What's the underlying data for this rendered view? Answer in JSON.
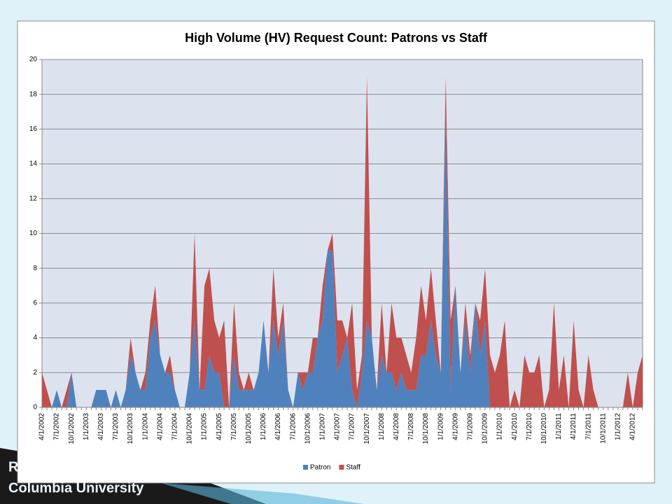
{
  "chart_data": {
    "type": "stacked-area",
    "title": "High Volume (HV) Request Count: Patrons vs Staff",
    "categories": [
      "4/1/2002",
      null,
      null,
      "7/1/2002",
      null,
      null,
      "10/1/2002",
      null,
      null,
      "1/1/2003",
      null,
      null,
      "4/1/2003",
      null,
      null,
      "7/1/2003",
      null,
      null,
      "10/1/2003",
      null,
      null,
      "1/1/2004",
      null,
      null,
      "4/1/2004",
      null,
      null,
      "7/1/2004",
      null,
      null,
      "10/1/2004",
      null,
      null,
      "1/1/2005",
      null,
      null,
      "4/1/2005",
      null,
      null,
      "7/1/2005",
      null,
      null,
      "10/1/2005",
      null,
      null,
      "1/1/2006",
      null,
      null,
      "4/1/2006",
      null,
      null,
      "7/1/2006",
      null,
      null,
      "10/1/2006",
      null,
      null,
      "1/1/2007",
      null,
      null,
      "4/1/2007",
      null,
      null,
      "7/1/2007",
      null,
      null,
      "10/1/2007",
      null,
      null,
      "1/1/2008",
      null,
      null,
      "4/1/2008",
      null,
      null,
      "7/1/2008",
      null,
      null,
      "10/1/2008",
      null,
      null,
      "1/1/2009",
      null,
      null,
      "4/1/2009",
      null,
      null,
      "7/1/2009",
      null,
      null,
      "10/1/2009",
      null,
      null,
      "1/1/2010",
      null,
      null,
      "4/1/2010",
      null,
      null,
      "7/1/2010",
      null,
      null,
      "10/1/2010",
      null,
      null,
      "1/1/2011",
      null,
      null,
      "4/1/2011",
      null,
      null,
      "7/1/2011",
      null,
      null,
      "10/1/2011",
      null,
      null,
      "1/1/2012",
      null,
      null,
      "4/1/2012",
      null,
      null
    ],
    "series": [
      {
        "name": "Patron",
        "color": "#4f81bd",
        "values": [
          0,
          0,
          0,
          1,
          0,
          0,
          2,
          0,
          0,
          0,
          0,
          1,
          1,
          1,
          0,
          1,
          0,
          1,
          3,
          2,
          1,
          1,
          4,
          5,
          3,
          2,
          2,
          1,
          0,
          0,
          2,
          5,
          1,
          1,
          3,
          2,
          2,
          0,
          0,
          3,
          1,
          1,
          1,
          1,
          2,
          5,
          2,
          5,
          3,
          5,
          1,
          0,
          2,
          1,
          2,
          2,
          4,
          5,
          9,
          9,
          2,
          3,
          4,
          1,
          0,
          2,
          5,
          4,
          1,
          3,
          2,
          2,
          1,
          2,
          1,
          1,
          1,
          3,
          3,
          5,
          3,
          2,
          17,
          1,
          7,
          2,
          5,
          2,
          6,
          3,
          5,
          0,
          0,
          0,
          0,
          0,
          0,
          0,
          0,
          0,
          0,
          0,
          0,
          0,
          0,
          0,
          0,
          0,
          0,
          0,
          0,
          0,
          0,
          0,
          0,
          0,
          0,
          0,
          0,
          0,
          0,
          0,
          0
        ]
      },
      {
        "name": "Staff",
        "color": "#c0504d",
        "values": [
          2,
          1,
          0,
          0,
          0,
          1,
          0,
          0,
          0,
          0,
          0,
          0,
          0,
          0,
          0,
          0,
          0,
          0,
          1,
          0,
          0,
          1,
          1,
          2,
          0,
          0,
          1,
          0,
          0,
          0,
          0,
          5,
          0,
          6,
          5,
          3,
          2,
          5,
          0,
          3,
          1,
          0,
          1,
          0,
          0,
          0,
          0,
          3,
          1,
          1,
          0,
          0,
          0,
          1,
          0,
          2,
          0,
          2,
          0,
          1,
          3,
          2,
          0,
          5,
          1,
          1,
          14,
          0,
          0,
          3,
          0,
          4,
          3,
          2,
          2,
          1,
          3,
          4,
          2,
          3,
          2,
          0,
          2,
          4,
          0,
          0,
          1,
          1,
          0,
          2,
          3,
          3,
          2,
          3,
          5,
          0,
          1,
          0,
          3,
          2,
          2,
          3,
          0,
          1,
          6,
          1,
          3,
          0,
          5,
          1,
          0,
          3,
          1,
          0,
          0,
          0,
          0,
          0,
          0,
          2,
          0,
          2,
          3
        ]
      }
    ],
    "ylim": [
      0,
      20
    ],
    "yticks": [
      0,
      2,
      4,
      6,
      8,
      10,
      12,
      14,
      16,
      18,
      20
    ],
    "grid": true,
    "legend": "bottom"
  },
  "footer": {
    "lines": [
      "R",
      "Columbia University"
    ]
  }
}
